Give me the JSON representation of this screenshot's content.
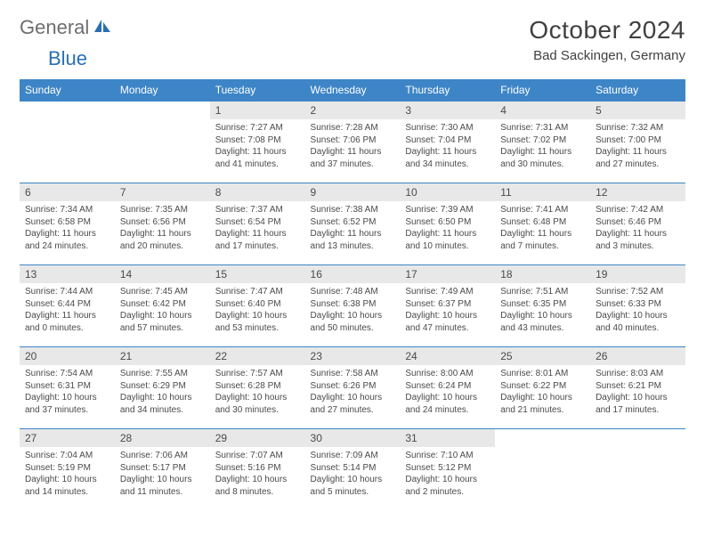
{
  "logo": {
    "part1": "General",
    "part2": "Blue"
  },
  "title": "October 2024",
  "location": "Bad Sackingen, Germany",
  "colors": {
    "header_bg": "#3d85c6",
    "header_text": "#ffffff",
    "daynum_bg": "#e8e8e8",
    "cell_border": "#3d85c6",
    "body_text": "#4a4a4a",
    "logo_gray": "#6e6e6e",
    "logo_blue": "#2a6fb5",
    "page_bg": "#ffffff"
  },
  "day_headers": [
    "Sunday",
    "Monday",
    "Tuesday",
    "Wednesday",
    "Thursday",
    "Friday",
    "Saturday"
  ],
  "weeks": [
    [
      {
        "blank": true
      },
      {
        "blank": true
      },
      {
        "day": "1",
        "sunrise": "Sunrise: 7:27 AM",
        "sunset": "Sunset: 7:08 PM",
        "daylight": "Daylight: 11 hours and 41 minutes."
      },
      {
        "day": "2",
        "sunrise": "Sunrise: 7:28 AM",
        "sunset": "Sunset: 7:06 PM",
        "daylight": "Daylight: 11 hours and 37 minutes."
      },
      {
        "day": "3",
        "sunrise": "Sunrise: 7:30 AM",
        "sunset": "Sunset: 7:04 PM",
        "daylight": "Daylight: 11 hours and 34 minutes."
      },
      {
        "day": "4",
        "sunrise": "Sunrise: 7:31 AM",
        "sunset": "Sunset: 7:02 PM",
        "daylight": "Daylight: 11 hours and 30 minutes."
      },
      {
        "day": "5",
        "sunrise": "Sunrise: 7:32 AM",
        "sunset": "Sunset: 7:00 PM",
        "daylight": "Daylight: 11 hours and 27 minutes."
      }
    ],
    [
      {
        "day": "6",
        "sunrise": "Sunrise: 7:34 AM",
        "sunset": "Sunset: 6:58 PM",
        "daylight": "Daylight: 11 hours and 24 minutes."
      },
      {
        "day": "7",
        "sunrise": "Sunrise: 7:35 AM",
        "sunset": "Sunset: 6:56 PM",
        "daylight": "Daylight: 11 hours and 20 minutes."
      },
      {
        "day": "8",
        "sunrise": "Sunrise: 7:37 AM",
        "sunset": "Sunset: 6:54 PM",
        "daylight": "Daylight: 11 hours and 17 minutes."
      },
      {
        "day": "9",
        "sunrise": "Sunrise: 7:38 AM",
        "sunset": "Sunset: 6:52 PM",
        "daylight": "Daylight: 11 hours and 13 minutes."
      },
      {
        "day": "10",
        "sunrise": "Sunrise: 7:39 AM",
        "sunset": "Sunset: 6:50 PM",
        "daylight": "Daylight: 11 hours and 10 minutes."
      },
      {
        "day": "11",
        "sunrise": "Sunrise: 7:41 AM",
        "sunset": "Sunset: 6:48 PM",
        "daylight": "Daylight: 11 hours and 7 minutes."
      },
      {
        "day": "12",
        "sunrise": "Sunrise: 7:42 AM",
        "sunset": "Sunset: 6:46 PM",
        "daylight": "Daylight: 11 hours and 3 minutes."
      }
    ],
    [
      {
        "day": "13",
        "sunrise": "Sunrise: 7:44 AM",
        "sunset": "Sunset: 6:44 PM",
        "daylight": "Daylight: 11 hours and 0 minutes."
      },
      {
        "day": "14",
        "sunrise": "Sunrise: 7:45 AM",
        "sunset": "Sunset: 6:42 PM",
        "daylight": "Daylight: 10 hours and 57 minutes."
      },
      {
        "day": "15",
        "sunrise": "Sunrise: 7:47 AM",
        "sunset": "Sunset: 6:40 PM",
        "daylight": "Daylight: 10 hours and 53 minutes."
      },
      {
        "day": "16",
        "sunrise": "Sunrise: 7:48 AM",
        "sunset": "Sunset: 6:38 PM",
        "daylight": "Daylight: 10 hours and 50 minutes."
      },
      {
        "day": "17",
        "sunrise": "Sunrise: 7:49 AM",
        "sunset": "Sunset: 6:37 PM",
        "daylight": "Daylight: 10 hours and 47 minutes."
      },
      {
        "day": "18",
        "sunrise": "Sunrise: 7:51 AM",
        "sunset": "Sunset: 6:35 PM",
        "daylight": "Daylight: 10 hours and 43 minutes."
      },
      {
        "day": "19",
        "sunrise": "Sunrise: 7:52 AM",
        "sunset": "Sunset: 6:33 PM",
        "daylight": "Daylight: 10 hours and 40 minutes."
      }
    ],
    [
      {
        "day": "20",
        "sunrise": "Sunrise: 7:54 AM",
        "sunset": "Sunset: 6:31 PM",
        "daylight": "Daylight: 10 hours and 37 minutes."
      },
      {
        "day": "21",
        "sunrise": "Sunrise: 7:55 AM",
        "sunset": "Sunset: 6:29 PM",
        "daylight": "Daylight: 10 hours and 34 minutes."
      },
      {
        "day": "22",
        "sunrise": "Sunrise: 7:57 AM",
        "sunset": "Sunset: 6:28 PM",
        "daylight": "Daylight: 10 hours and 30 minutes."
      },
      {
        "day": "23",
        "sunrise": "Sunrise: 7:58 AM",
        "sunset": "Sunset: 6:26 PM",
        "daylight": "Daylight: 10 hours and 27 minutes."
      },
      {
        "day": "24",
        "sunrise": "Sunrise: 8:00 AM",
        "sunset": "Sunset: 6:24 PM",
        "daylight": "Daylight: 10 hours and 24 minutes."
      },
      {
        "day": "25",
        "sunrise": "Sunrise: 8:01 AM",
        "sunset": "Sunset: 6:22 PM",
        "daylight": "Daylight: 10 hours and 21 minutes."
      },
      {
        "day": "26",
        "sunrise": "Sunrise: 8:03 AM",
        "sunset": "Sunset: 6:21 PM",
        "daylight": "Daylight: 10 hours and 17 minutes."
      }
    ],
    [
      {
        "day": "27",
        "sunrise": "Sunrise: 7:04 AM",
        "sunset": "Sunset: 5:19 PM",
        "daylight": "Daylight: 10 hours and 14 minutes."
      },
      {
        "day": "28",
        "sunrise": "Sunrise: 7:06 AM",
        "sunset": "Sunset: 5:17 PM",
        "daylight": "Daylight: 10 hours and 11 minutes."
      },
      {
        "day": "29",
        "sunrise": "Sunrise: 7:07 AM",
        "sunset": "Sunset: 5:16 PM",
        "daylight": "Daylight: 10 hours and 8 minutes."
      },
      {
        "day": "30",
        "sunrise": "Sunrise: 7:09 AM",
        "sunset": "Sunset: 5:14 PM",
        "daylight": "Daylight: 10 hours and 5 minutes."
      },
      {
        "day": "31",
        "sunrise": "Sunrise: 7:10 AM",
        "sunset": "Sunset: 5:12 PM",
        "daylight": "Daylight: 10 hours and 2 minutes."
      },
      {
        "blank": true
      },
      {
        "blank": true
      }
    ]
  ]
}
